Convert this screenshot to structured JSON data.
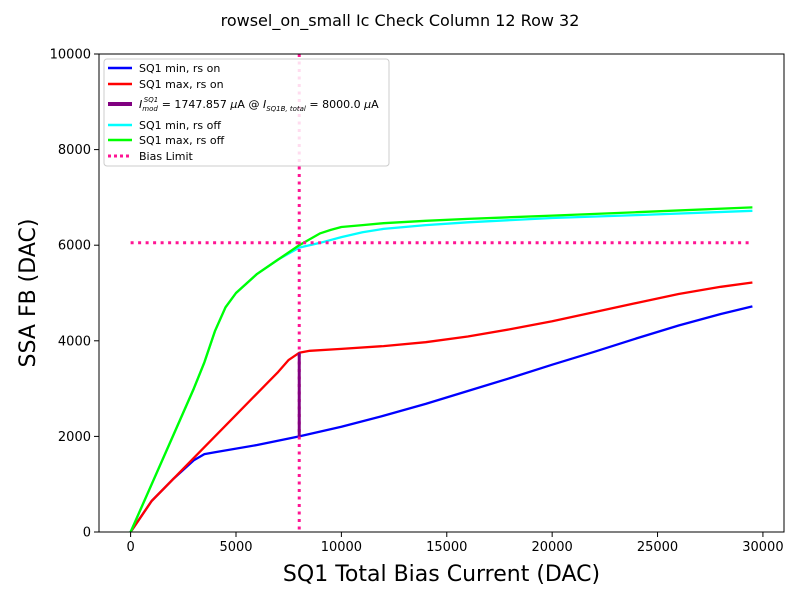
{
  "chart_data": {
    "type": "line",
    "title": "rowsel_on_small Ic Check Column 12 Row 32",
    "xlabel": "SQ1 Total Bias Current (DAC)",
    "ylabel": "SSA FB (DAC)",
    "xlim": [
      -1500,
      31000
    ],
    "ylim": [
      0,
      10000
    ],
    "xticks": [
      0,
      5000,
      10000,
      15000,
      20000,
      25000,
      30000
    ],
    "yticks": [
      0,
      2000,
      4000,
      6000,
      8000,
      10000
    ],
    "grid": false,
    "legend_position": "upper-left",
    "series": [
      {
        "name": "SQ1 min, rs on",
        "color": "#0000ff",
        "style": "solid",
        "x": [
          0,
          1000,
          2000,
          3000,
          3500,
          4000,
          6000,
          8000,
          10000,
          12000,
          14000,
          16000,
          18000,
          20000,
          22000,
          24000,
          26000,
          28000,
          29500
        ],
        "y": [
          0,
          650,
          1100,
          1500,
          1630,
          1670,
          1820,
          2000,
          2200,
          2430,
          2680,
          2950,
          3220,
          3500,
          3770,
          4050,
          4320,
          4560,
          4720
        ]
      },
      {
        "name": "SQ1 max, rs on",
        "color": "#ff0000",
        "style": "solid",
        "x": [
          0,
          1000,
          2000,
          3000,
          4000,
          5000,
          6000,
          7000,
          7500,
          8000,
          8500,
          10000,
          12000,
          14000,
          16000,
          18000,
          20000,
          22000,
          24000,
          26000,
          28000,
          29500
        ],
        "y": [
          0,
          650,
          1100,
          1550,
          2000,
          2450,
          2900,
          3350,
          3600,
          3750,
          3790,
          3830,
          3890,
          3970,
          4090,
          4240,
          4410,
          4600,
          4790,
          4980,
          5130,
          5220
        ]
      },
      {
        "name": "SQ1 min, rs off",
        "color": "#00ffff",
        "style": "solid",
        "x": [
          0,
          1000,
          2000,
          3000,
          3500,
          4000,
          4500,
          5000,
          6000,
          7000,
          8000,
          9000,
          10000,
          11000,
          12000,
          14000,
          16000,
          20000,
          24000,
          29500
        ],
        "y": [
          0,
          1000,
          2000,
          3000,
          3550,
          4200,
          4700,
          5000,
          5400,
          5700,
          5950,
          6050,
          6170,
          6270,
          6340,
          6420,
          6480,
          6570,
          6630,
          6720
        ]
      },
      {
        "name": "SQ1 max, rs off",
        "color": "#00ff00",
        "style": "solid",
        "x": [
          0,
          1000,
          2000,
          3000,
          3500,
          4000,
          4500,
          5000,
          6000,
          7000,
          8000,
          9000,
          9500,
          10000,
          11000,
          12000,
          14000,
          16000,
          20000,
          24000,
          29500
        ],
        "y": [
          0,
          1000,
          2000,
          3000,
          3550,
          4200,
          4700,
          5000,
          5400,
          5700,
          6000,
          6250,
          6320,
          6380,
          6420,
          6460,
          6510,
          6550,
          6620,
          6690,
          6790
        ]
      },
      {
        "name": "Bias Limit",
        "color": "#ff1493",
        "style": "dotted",
        "x": [
          0,
          29500
        ],
        "y": [
          6050,
          6050
        ]
      }
    ],
    "bias_limit_vline_x": 8000,
    "imod_segment": {
      "x": 8000,
      "y_low": 2000,
      "y_high": 3750,
      "color": "#800080"
    },
    "legend": [
      {
        "label": "SQ1 min, rs on",
        "color": "#0000ff",
        "style": "solid"
      },
      {
        "label": "SQ1 max, rs on",
        "color": "#ff0000",
        "style": "solid"
      },
      {
        "label": "I_mod^SQ1 = 1747.857 μA @ I_SQ1B,total = 8000.0 μA",
        "color": "#800080",
        "style": "thick"
      },
      {
        "label": "SQ1 min, rs off",
        "color": "#00ffff",
        "style": "solid"
      },
      {
        "label": "SQ1 max, rs off",
        "color": "#00ff00",
        "style": "solid"
      },
      {
        "label": "Bias Limit",
        "color": "#ff1493",
        "style": "dotted"
      }
    ],
    "imod_label_parts": {
      "i": "I",
      "mod_sub": "mod",
      "sq1_sup": "SQ1",
      "value": " = 1747.857 ",
      "mu": "μ",
      "unit_at": "A @ ",
      "i2": "I",
      "sq1b_sub": "SQ1B, total",
      "value2": " = 8000.0 ",
      "mu2": "μ",
      "unit_end": "A"
    }
  }
}
